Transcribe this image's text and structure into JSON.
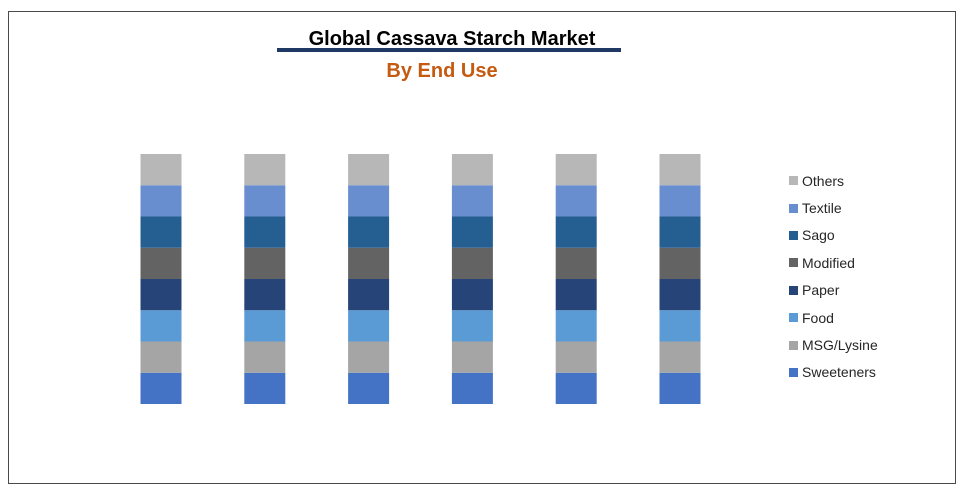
{
  "chart_data": {
    "type": "bar",
    "stacked": true,
    "title": "Global Cassava Starch Market",
    "subtitle": "By End Use",
    "categories": [
      "",
      "",
      "",
      "",
      "",
      ""
    ],
    "series": [
      {
        "name": "Sweeteners",
        "color": "#4472c4",
        "values": [
          1,
          1,
          1,
          1,
          1,
          1
        ]
      },
      {
        "name": "MSG/Lysine",
        "color": "#a5a5a5",
        "values": [
          1,
          1,
          1,
          1,
          1,
          1
        ]
      },
      {
        "name": "Food",
        "color": "#5b9bd5",
        "values": [
          1,
          1,
          1,
          1,
          1,
          1
        ]
      },
      {
        "name": "Paper",
        "color": "#264478",
        "values": [
          1,
          1,
          1,
          1,
          1,
          1
        ]
      },
      {
        "name": "Modified",
        "color": "#636363",
        "values": [
          1,
          1,
          1,
          1,
          1,
          1
        ]
      },
      {
        "name": "Sago",
        "color": "#255e91",
        "values": [
          1,
          1,
          1,
          1,
          1,
          1
        ]
      },
      {
        "name": "Textile",
        "color": "#698ed0",
        "values": [
          1,
          1,
          1,
          1,
          1,
          1
        ]
      },
      {
        "name": "Others",
        "color": "#b7b7b7",
        "values": [
          1,
          1,
          1,
          1,
          1,
          1
        ]
      }
    ],
    "axes_visible": false,
    "grid": false,
    "legend_position": "right"
  },
  "colors": {
    "title_rule": "#1f3864",
    "subtitle": "#c55a11",
    "frame_border": "#4a4a4a"
  }
}
